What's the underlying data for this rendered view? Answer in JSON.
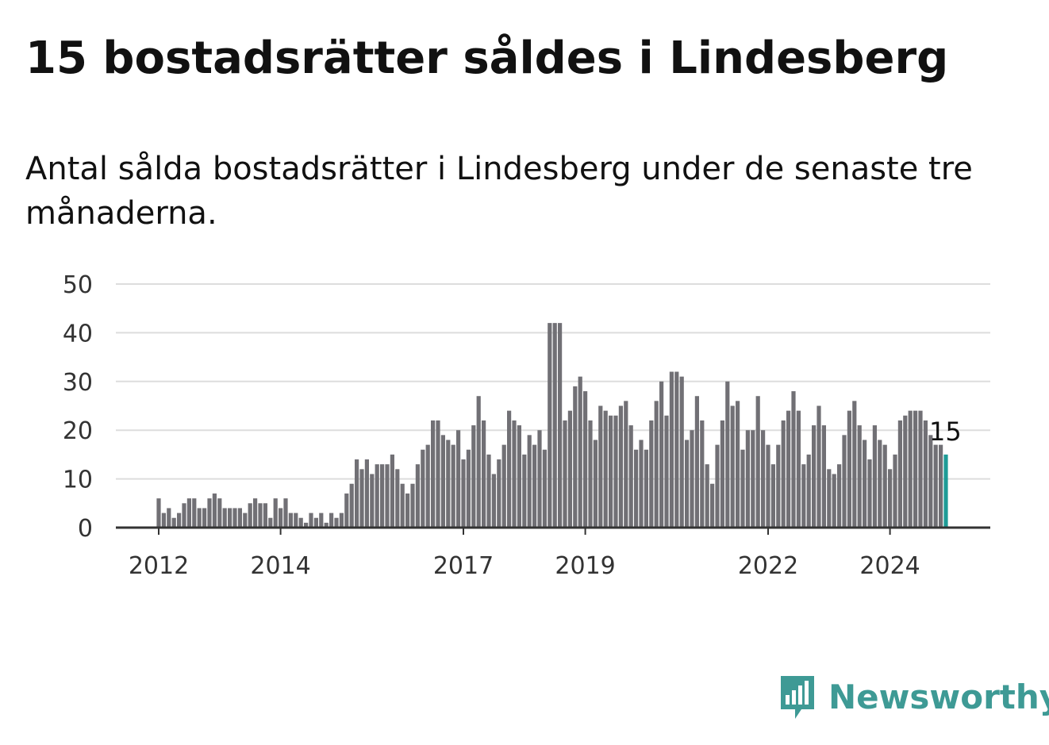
{
  "title": "15 bostadsrätter såldes i Lindesberg",
  "subtitle": "Antal sålda bostadsrätter i Lindesberg under de senaste tre månaderna.",
  "brand": {
    "name": "Newsworthy",
    "icon": "bar-chart-speech-bubble-icon",
    "color": "#3e9a95"
  },
  "colors": {
    "bar": "#717075",
    "highlight": "#1e9b96",
    "grid": "#dddddd",
    "axis": "#333333"
  },
  "chart_data": {
    "type": "bar",
    "title": "",
    "xlabel": "",
    "ylabel": "",
    "ylim": [
      0,
      50
    ],
    "yticks": [
      0,
      10,
      20,
      30,
      40,
      50
    ],
    "xticks": [
      {
        "label": "2012",
        "value": "2012-01"
      },
      {
        "label": "2014",
        "value": "2014-01"
      },
      {
        "label": "2017",
        "value": "2017-01"
      },
      {
        "label": "2019",
        "value": "2019-01"
      },
      {
        "label": "2022",
        "value": "2022-01"
      },
      {
        "label": "2024",
        "value": "2024-01"
      }
    ],
    "grid": true,
    "legend": "none",
    "start_month": "2012-01",
    "values": [
      6,
      3,
      4,
      2,
      3,
      5,
      6,
      6,
      4,
      4,
      6,
      7,
      6,
      4,
      4,
      4,
      4,
      3,
      5,
      6,
      5,
      5,
      2,
      6,
      4,
      6,
      3,
      3,
      2,
      1,
      3,
      2,
      3,
      1,
      3,
      2,
      3,
      7,
      9,
      14,
      12,
      14,
      11,
      13,
      13,
      13,
      15,
      12,
      9,
      7,
      9,
      13,
      16,
      17,
      22,
      22,
      19,
      18,
      17,
      20,
      14,
      16,
      21,
      27,
      22,
      15,
      11,
      14,
      17,
      24,
      22,
      21,
      15,
      19,
      17,
      20,
      16,
      42,
      42,
      42,
      22,
      24,
      29,
      31,
      28,
      22,
      18,
      25,
      24,
      23,
      23,
      25,
      26,
      21,
      16,
      18,
      16,
      22,
      26,
      30,
      23,
      32,
      32,
      31,
      18,
      20,
      27,
      22,
      13,
      9,
      17,
      22,
      30,
      25,
      26,
      16,
      20,
      20,
      27,
      20,
      17,
      13,
      17,
      22,
      24,
      28,
      24,
      13,
      15,
      21,
      25,
      21,
      12,
      11,
      13,
      19,
      24,
      26,
      21,
      18,
      14,
      21,
      18,
      17,
      12,
      15,
      22,
      23,
      24,
      24,
      24,
      22,
      19,
      17,
      17,
      15
    ],
    "highlight": {
      "label": "15",
      "value": 15
    }
  }
}
